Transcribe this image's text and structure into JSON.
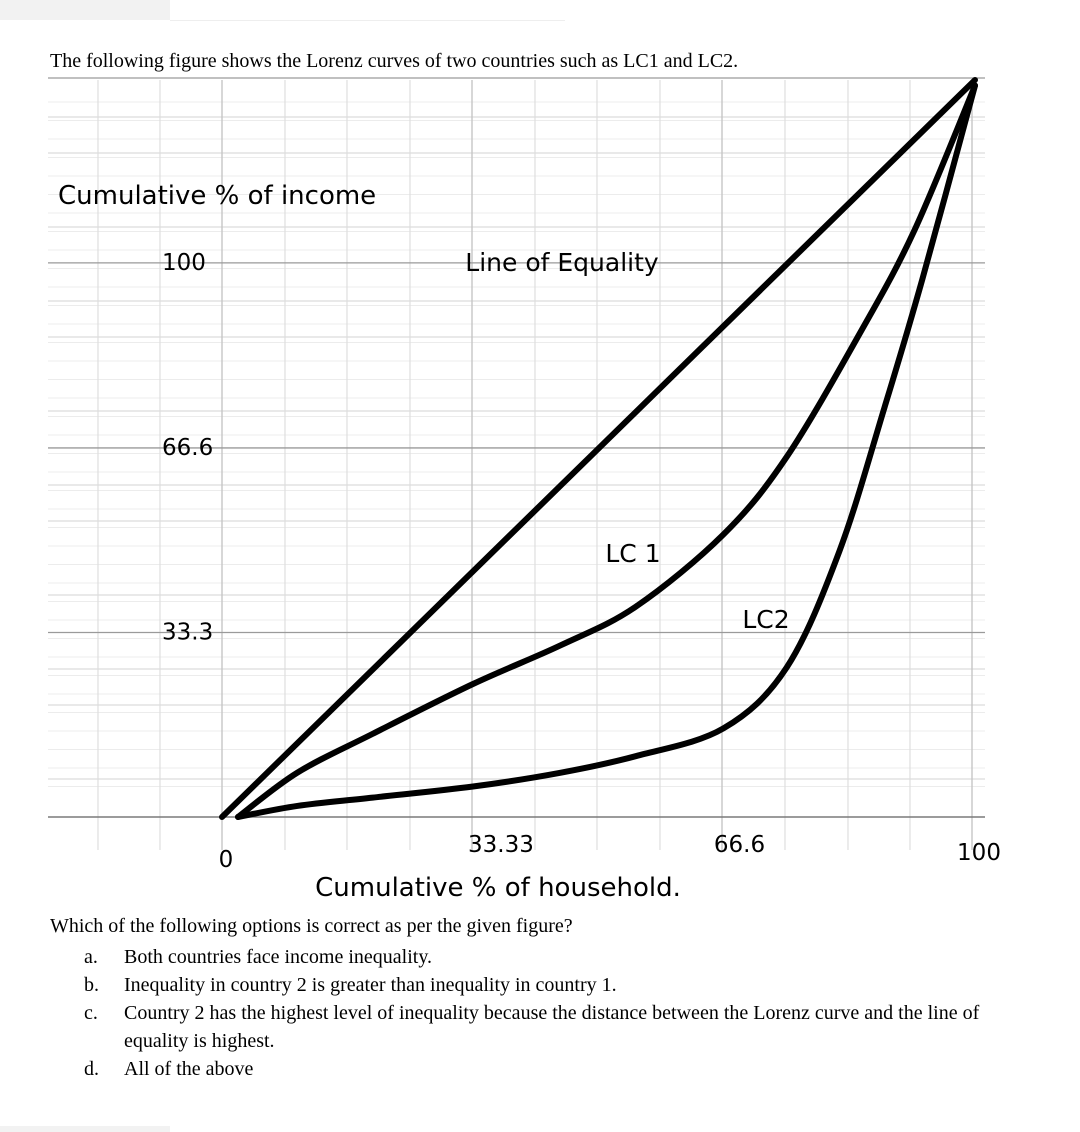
{
  "intro_text": "The following figure shows the Lorenz curves of two countries such as LC1 and LC2.",
  "question_text": "Which of the following options is correct as per the given figure?",
  "options": [
    {
      "letter": "a.",
      "text": "Both countries face income inequality."
    },
    {
      "letter": "b.",
      "text": "Inequality in country 2 is greater than inequality in country 1."
    },
    {
      "letter": "c.",
      "text": "Country 2 has the highest level of inequality because the distance between the Lorenz curve and the line of equality is highest."
    },
    {
      "letter": "d.",
      "text": "All of the above"
    }
  ],
  "chart_data": {
    "type": "line",
    "ylabel": "Cumulative % of income",
    "xlabel": "Cumulative % of household.",
    "x_ticks": [
      {
        "value": 0,
        "label": "0"
      },
      {
        "value": 33.33,
        "label": "33.33"
      },
      {
        "value": 66.6,
        "label": "66.6"
      },
      {
        "value": 100,
        "label": "100"
      }
    ],
    "y_ticks": [
      {
        "value": 33.3,
        "label": "33.3"
      },
      {
        "value": 66.6,
        "label": "66.6"
      },
      {
        "value": 100,
        "label": "100"
      }
    ],
    "xlim": [
      0,
      100
    ],
    "ylim": [
      0,
      133
    ],
    "grid": true,
    "series": [
      {
        "name": "Line of Equality",
        "x": [
          0,
          100
        ],
        "y": [
          0,
          133
        ]
      },
      {
        "name": "LC 1",
        "x": [
          0,
          10,
          20,
          33.33,
          45,
          55,
          66.6,
          75,
          85,
          92,
          100
        ],
        "y": [
          0,
          8,
          15,
          24,
          31,
          38,
          51,
          65,
          88,
          106,
          132
        ]
      },
      {
        "name": "LC2",
        "x": [
          0,
          10,
          20,
          33.33,
          45,
          55,
          66.6,
          75,
          82,
          88,
          93,
          100
        ],
        "y": [
          0,
          2,
          3.5,
          5.5,
          8,
          11,
          16,
          27,
          48,
          74,
          97,
          132
        ]
      }
    ]
  }
}
